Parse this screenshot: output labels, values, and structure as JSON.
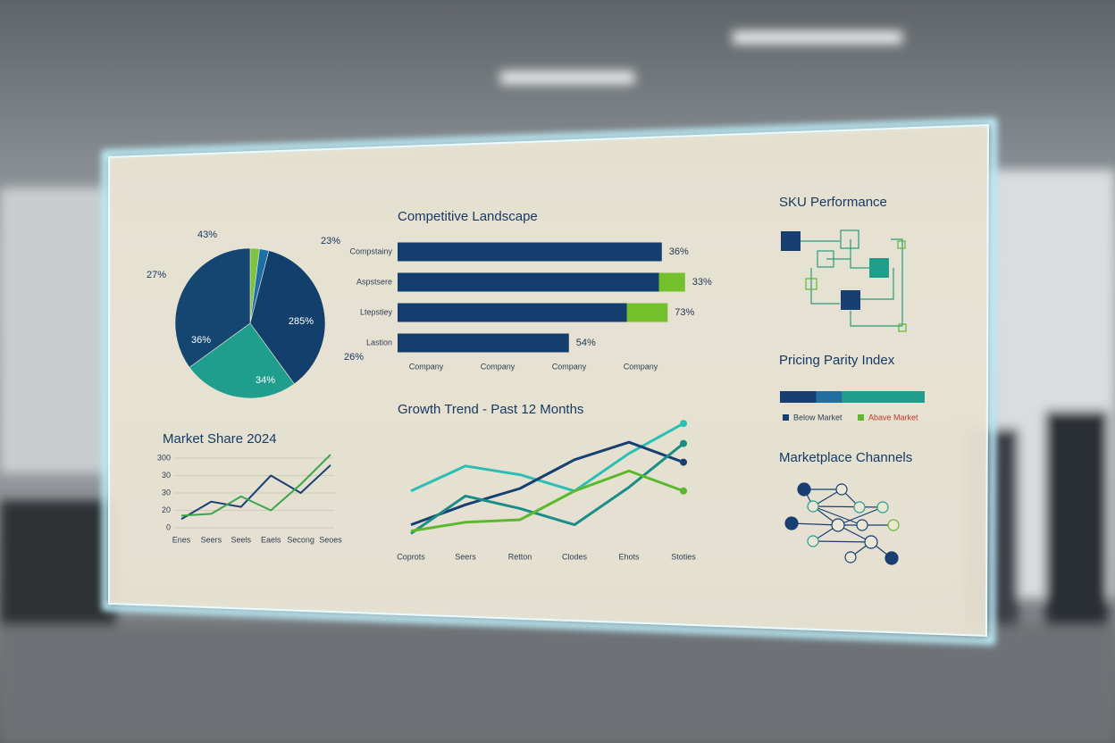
{
  "chart_data": [
    {
      "type": "pie",
      "values": [
        2,
        2,
        36,
        25,
        35
      ],
      "colors": [
        "#7dc242",
        "#1e6fa8",
        "#123f6b",
        "#1f9e8e",
        "#154672"
      ],
      "annotations": [
        "43%",
        "23%",
        "27%",
        "36%",
        "285%",
        "34%",
        "26%"
      ]
    },
    {
      "type": "hbar",
      "title": "Competitive Landscape",
      "categories": [
        "Compstainy",
        "Aspstsere",
        "Ltepstiey",
        "Lastion"
      ],
      "series": [
        {
          "color": "#143e6e",
          "values": [
            91,
            90,
            79,
            59
          ]
        },
        {
          "color": "#72c02c",
          "values": [
            null,
            9,
            14,
            null
          ]
        }
      ],
      "xlim": [
        0,
        100
      ],
      "annotations": [
        "36%",
        "33%",
        "73%",
        "54%"
      ],
      "xlabels": [
        "Company",
        "Company",
        "Company",
        "Company"
      ]
    },
    {
      "type": "line",
      "title": "Market Share 2024",
      "categories": [
        "Enes",
        "Seers",
        "Seels",
        "Eaels",
        "Secong",
        "Seoes"
      ],
      "series": [
        {
          "color": "#1a3f78",
          "values": [
            0.5,
            1.5,
            1.2,
            3.0,
            2.0,
            3.6
          ]
        },
        {
          "color": "#3aa54a",
          "values": [
            0.7,
            0.8,
            1.8,
            1.0,
            2.5,
            4.2
          ]
        }
      ],
      "ylim": [
        0,
        4
      ],
      "yticks": [
        {
          "value": 0,
          "label": "0"
        },
        {
          "value": 1,
          "label": "20"
        },
        {
          "value": 2,
          "label": "30"
        },
        {
          "value": 3,
          "label": "30"
        },
        {
          "value": 4,
          "label": "300"
        }
      ],
      "grid": true
    },
    {
      "type": "line",
      "title": "Growth Trend - Past 12 Months",
      "categories": [
        "Coprots",
        "Seers",
        "Retton",
        "Clodes",
        "Ehots",
        "Stoties"
      ],
      "series": [
        {
          "color": "#2bbfb3",
          "values": [
            4.3,
            6.3,
            5.6,
            4.3,
            7.3,
            9.7
          ]
        },
        {
          "color": "#183f72",
          "values": [
            1.6,
            3.2,
            4.5,
            6.8,
            8.2,
            6.6
          ]
        },
        {
          "color": "#1a8e86",
          "values": [
            0.9,
            3.9,
            2.9,
            1.6,
            4.6,
            8.1
          ]
        },
        {
          "color": "#5cb82e",
          "values": [
            1.1,
            1.8,
            2.0,
            4.3,
            5.9,
            4.3
          ]
        }
      ],
      "ylim": [
        0,
        10
      ],
      "grid": false
    },
    {
      "type": "segments",
      "title": "Pricing Parity Index",
      "values": [
        25,
        18,
        57
      ],
      "colors": [
        "#173f72",
        "#1f6fa3",
        "#1f9e8e"
      ],
      "legend": [
        {
          "name": "Below Market",
          "color": "#173f72"
        },
        {
          "name": "Abave Market",
          "color": "#5cb82e"
        }
      ]
    }
  ],
  "panels": {
    "sku_performance": {
      "title": "SKU Performance"
    },
    "marketplace_channels": {
      "title": "Marketplace Channels"
    }
  }
}
